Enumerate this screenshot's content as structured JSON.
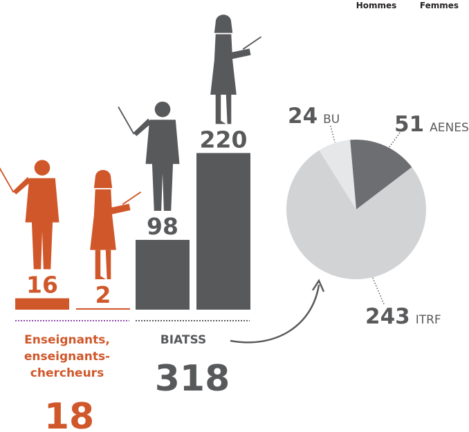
{
  "chart_data": [
    {
      "type": "bar",
      "categories": [
        "Enseignants, enseignants-chercheurs",
        "BIATSS"
      ],
      "colors": [
        "#d0572a",
        "#58595b"
      ],
      "series": [
        {
          "name": "Hommes",
          "values": [
            16,
            98
          ]
        },
        {
          "name": "Femmes",
          "values": [
            2,
            220
          ]
        }
      ],
      "totals": [
        18,
        318
      ]
    },
    {
      "type": "pie",
      "categories": [
        "BU",
        "AENES",
        "ITRF"
      ],
      "values": [
        24,
        51,
        243
      ],
      "colors": [
        "#e6e7e8",
        "#6d6e71",
        "#d1d3d4"
      ]
    }
  ]
}
